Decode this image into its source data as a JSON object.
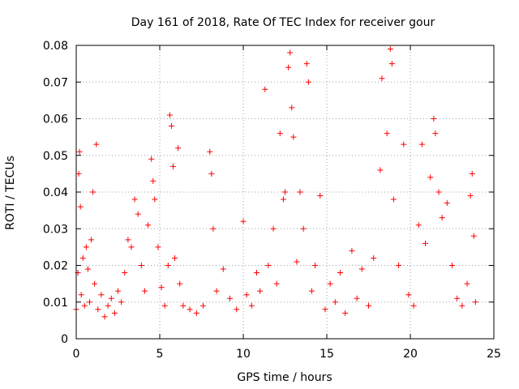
{
  "chart_data": {
    "type": "scatter",
    "title": "Day 161 of 2018, Rate Of TEC Index for receiver gour",
    "xlabel": "GPS time / hours",
    "ylabel": "ROTI / TECUs",
    "xlim": [
      0,
      25
    ],
    "ylim": [
      0,
      0.08
    ],
    "grid": true,
    "marker": "+",
    "color": "#ff0000",
    "x_ticks": [
      0,
      5,
      10,
      15,
      20,
      25
    ],
    "x_tick_labels": [
      "0",
      "5",
      "10",
      "15",
      "20",
      "25"
    ],
    "y_ticks": [
      0,
      0.01,
      0.02,
      0.03,
      0.04,
      0.05,
      0.06,
      0.07,
      0.08
    ],
    "y_tick_labels": [
      "0",
      "0.01",
      "0.02",
      "0.03",
      "0.04",
      "0.05",
      "0.06",
      "0.07",
      "0.08"
    ],
    "series": [
      {
        "name": "ROTI",
        "points": [
          [
            0.0,
            0.008
          ],
          [
            0.1,
            0.018
          ],
          [
            0.15,
            0.045
          ],
          [
            0.2,
            0.051
          ],
          [
            0.25,
            0.036
          ],
          [
            0.3,
            0.012
          ],
          [
            0.4,
            0.022
          ],
          [
            0.5,
            0.009
          ],
          [
            0.6,
            0.025
          ],
          [
            0.7,
            0.019
          ],
          [
            0.8,
            0.01
          ],
          [
            0.9,
            0.027
          ],
          [
            1.0,
            0.04
          ],
          [
            1.1,
            0.015
          ],
          [
            1.2,
            0.053
          ],
          [
            1.3,
            0.008
          ],
          [
            1.5,
            0.012
          ],
          [
            1.7,
            0.006
          ],
          [
            1.9,
            0.009
          ],
          [
            2.1,
            0.011
          ],
          [
            2.3,
            0.007
          ],
          [
            2.5,
            0.013
          ],
          [
            2.7,
            0.01
          ],
          [
            2.9,
            0.018
          ],
          [
            3.1,
            0.027
          ],
          [
            3.3,
            0.025
          ],
          [
            3.5,
            0.038
          ],
          [
            3.7,
            0.034
          ],
          [
            3.9,
            0.02
          ],
          [
            4.1,
            0.013
          ],
          [
            4.3,
            0.031
          ],
          [
            4.5,
            0.049
          ],
          [
            4.6,
            0.043
          ],
          [
            4.7,
            0.038
          ],
          [
            4.9,
            0.025
          ],
          [
            5.1,
            0.014
          ],
          [
            5.3,
            0.009
          ],
          [
            5.5,
            0.02
          ],
          [
            5.6,
            0.061
          ],
          [
            5.7,
            0.058
          ],
          [
            5.8,
            0.047
          ],
          [
            5.9,
            0.022
          ],
          [
            6.1,
            0.052
          ],
          [
            6.2,
            0.015
          ],
          [
            6.4,
            0.009
          ],
          [
            6.8,
            0.008
          ],
          [
            7.2,
            0.007
          ],
          [
            7.6,
            0.009
          ],
          [
            8.0,
            0.051
          ],
          [
            8.1,
            0.045
          ],
          [
            8.2,
            0.03
          ],
          [
            8.4,
            0.013
          ],
          [
            8.8,
            0.019
          ],
          [
            9.2,
            0.011
          ],
          [
            9.6,
            0.008
          ],
          [
            10.0,
            0.032
          ],
          [
            10.2,
            0.012
          ],
          [
            10.5,
            0.009
          ],
          [
            10.8,
            0.018
          ],
          [
            11.0,
            0.013
          ],
          [
            11.3,
            0.068
          ],
          [
            11.5,
            0.02
          ],
          [
            11.8,
            0.03
          ],
          [
            12.0,
            0.015
          ],
          [
            12.2,
            0.056
          ],
          [
            12.4,
            0.038
          ],
          [
            12.5,
            0.04
          ],
          [
            12.7,
            0.074
          ],
          [
            12.8,
            0.078
          ],
          [
            12.9,
            0.063
          ],
          [
            13.0,
            0.055
          ],
          [
            13.2,
            0.021
          ],
          [
            13.4,
            0.04
          ],
          [
            13.6,
            0.03
          ],
          [
            13.8,
            0.075
          ],
          [
            13.9,
            0.07
          ],
          [
            14.1,
            0.013
          ],
          [
            14.3,
            0.02
          ],
          [
            14.6,
            0.039
          ],
          [
            14.9,
            0.008
          ],
          [
            15.2,
            0.015
          ],
          [
            15.5,
            0.01
          ],
          [
            15.8,
            0.018
          ],
          [
            16.1,
            0.007
          ],
          [
            16.5,
            0.024
          ],
          [
            16.8,
            0.011
          ],
          [
            17.1,
            0.019
          ],
          [
            17.5,
            0.009
          ],
          [
            17.8,
            0.022
          ],
          [
            18.2,
            0.046
          ],
          [
            18.3,
            0.071
          ],
          [
            18.6,
            0.056
          ],
          [
            18.8,
            0.079
          ],
          [
            18.9,
            0.075
          ],
          [
            19.0,
            0.038
          ],
          [
            19.3,
            0.02
          ],
          [
            19.6,
            0.053
          ],
          [
            19.9,
            0.012
          ],
          [
            20.2,
            0.009
          ],
          [
            20.5,
            0.031
          ],
          [
            20.7,
            0.053
          ],
          [
            20.9,
            0.026
          ],
          [
            21.2,
            0.044
          ],
          [
            21.4,
            0.06
          ],
          [
            21.5,
            0.056
          ],
          [
            21.7,
            0.04
          ],
          [
            21.9,
            0.033
          ],
          [
            22.2,
            0.037
          ],
          [
            22.5,
            0.02
          ],
          [
            22.8,
            0.011
          ],
          [
            23.1,
            0.009
          ],
          [
            23.4,
            0.015
          ],
          [
            23.6,
            0.039
          ],
          [
            23.7,
            0.045
          ],
          [
            23.8,
            0.028
          ],
          [
            23.9,
            0.01
          ]
        ]
      }
    ]
  }
}
